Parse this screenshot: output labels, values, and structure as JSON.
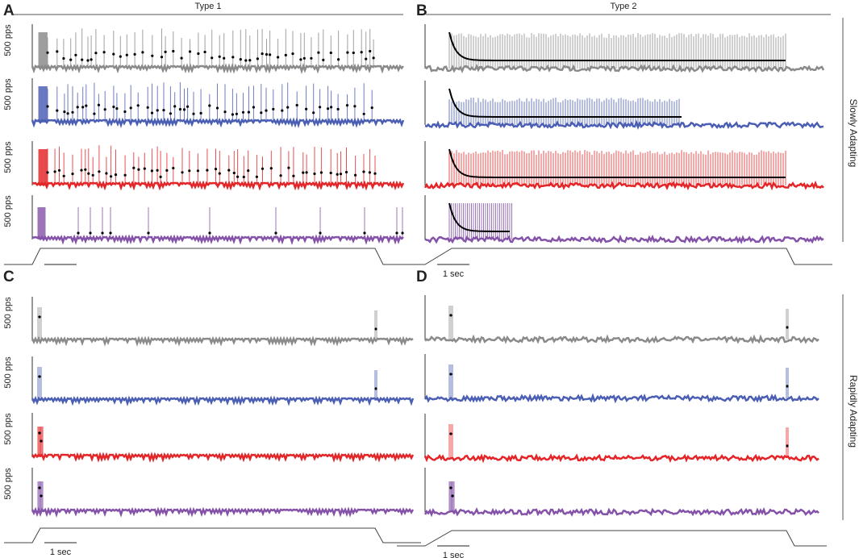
{
  "panels": [
    {
      "label": "A",
      "title": "Type 1",
      "y_labels": [
        "500 pps",
        "500 pps",
        "500 pps",
        "500 pps"
      ]
    },
    {
      "label": "B",
      "title": "Type 2",
      "scale_label": "1 sec"
    },
    {
      "label": "C",
      "y_labels": [
        "500 pps",
        "500 pps",
        "500 pps",
        "500 pps"
      ],
      "scale_label": "1 sec"
    },
    {
      "label": "D",
      "scale_label": "1 sec"
    }
  ],
  "side_labels": [
    "Slowly Adapting",
    "Rapidly Adapting"
  ]
}
